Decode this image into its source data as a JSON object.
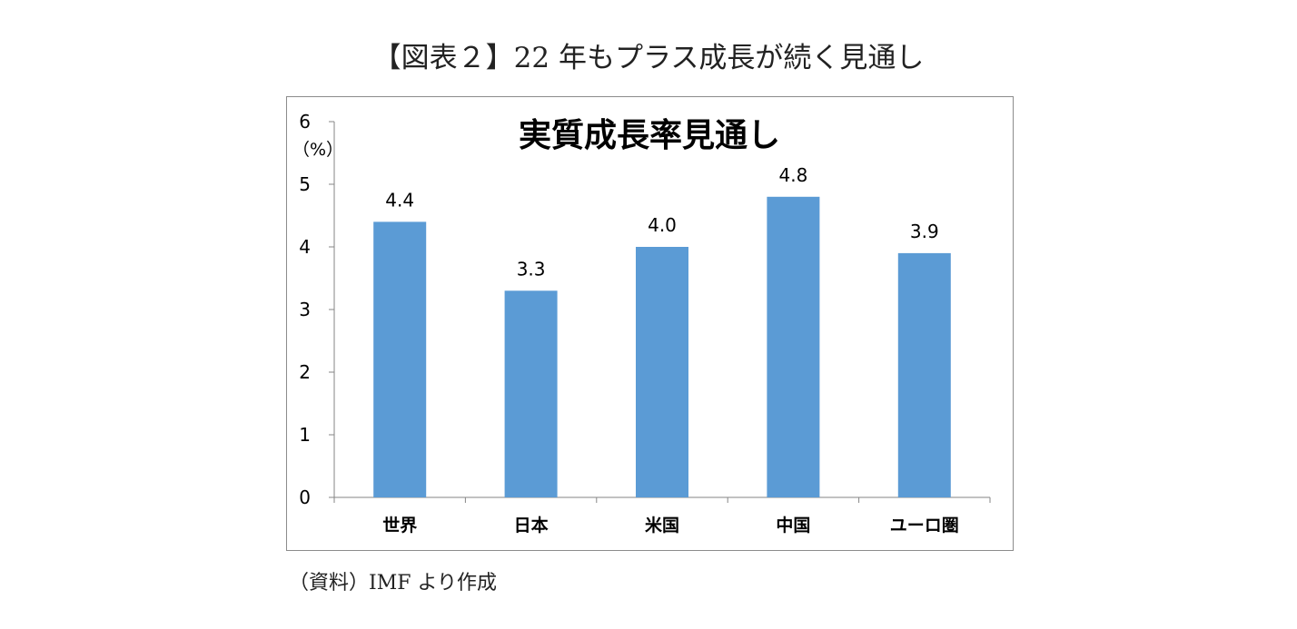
{
  "figure": {
    "title": "【図表２】22 年もプラス成長が続く見通し",
    "source": "（資料）IMF より作成"
  },
  "chart_data": {
    "type": "bar",
    "title": "実質成長率見通し",
    "unit_label": "（%）",
    "categories": [
      "世界",
      "日本",
      "米国",
      "中国",
      "ユーロ圏"
    ],
    "values": [
      4.4,
      3.3,
      4.0,
      4.8,
      3.9
    ],
    "data_labels": [
      "4.4",
      "3.3",
      "4.0",
      "4.8",
      "3.9"
    ],
    "ylim": [
      0,
      6
    ],
    "yticks": [
      0,
      1,
      2,
      3,
      4,
      5,
      6
    ],
    "bar_color": "#5b9bd5",
    "grid": false,
    "legend": "none"
  }
}
